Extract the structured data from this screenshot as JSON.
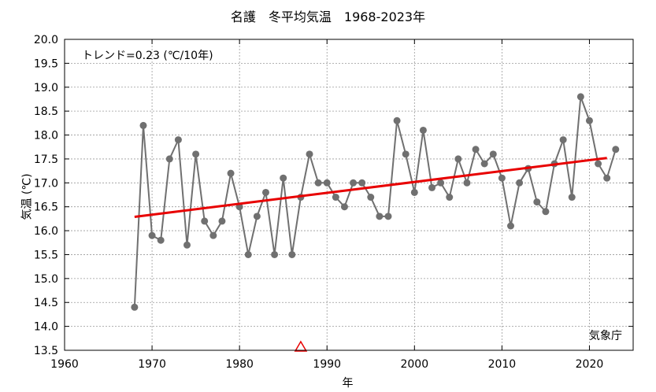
{
  "chart_data": {
    "type": "line",
    "title": "名護　冬平均気温　1968-2023年",
    "xlabel": "年",
    "ylabel": "気温 (℃)",
    "xlim": [
      1960,
      2025
    ],
    "ylim": [
      13.5,
      20.0
    ],
    "xticks": [
      "1960",
      "1970",
      "1980",
      "1990",
      "2000",
      "2010",
      "2020"
    ],
    "yticks": [
      "13.5",
      "14.0",
      "14.5",
      "15.0",
      "15.5",
      "16.0",
      "16.5",
      "17.0",
      "17.5",
      "18.0",
      "18.5",
      "19.0",
      "19.5",
      "20.0"
    ],
    "grid": true,
    "trend_label": "トレンド=0.23 (℃/10年)",
    "source_label": "気象庁",
    "trend_line": {
      "x": [
        1968,
        2022
      ],
      "y": [
        16.29,
        17.52
      ],
      "color": "#e80000"
    },
    "marker": {
      "x": 1987,
      "y": 13.55,
      "color": "#e80000"
    },
    "series_color": "#707070",
    "x": [
      1968,
      1969,
      1970,
      1971,
      1972,
      1973,
      1974,
      1975,
      1976,
      1977,
      1978,
      1979,
      1980,
      1981,
      1982,
      1983,
      1984,
      1985,
      1986,
      1987,
      1988,
      1989,
      1990,
      1991,
      1992,
      1993,
      1994,
      1995,
      1996,
      1997,
      1998,
      1999,
      2000,
      2001,
      2002,
      2003,
      2004,
      2005,
      2006,
      2007,
      2008,
      2009,
      2010,
      2011,
      2012,
      2013,
      2014,
      2015,
      2016,
      2017,
      2018,
      2019,
      2020,
      2021,
      2022,
      2023
    ],
    "y": [
      14.4,
      18.2,
      15.9,
      15.8,
      17.5,
      17.9,
      15.7,
      17.6,
      16.2,
      15.9,
      16.2,
      17.2,
      16.5,
      15.5,
      16.3,
      16.8,
      15.5,
      17.1,
      15.5,
      16.7,
      17.6,
      17.0,
      17.0,
      16.7,
      16.5,
      17.0,
      17.0,
      16.7,
      16.3,
      16.3,
      18.3,
      17.6,
      16.8,
      18.1,
      16.9,
      17.0,
      16.7,
      17.5,
      17.0,
      17.7,
      17.4,
      17.6,
      17.1,
      16.1,
      17.0,
      17.3,
      16.6,
      16.4,
      17.4,
      17.9,
      16.7,
      18.8,
      18.3,
      17.4,
      17.1,
      17.7
    ]
  }
}
